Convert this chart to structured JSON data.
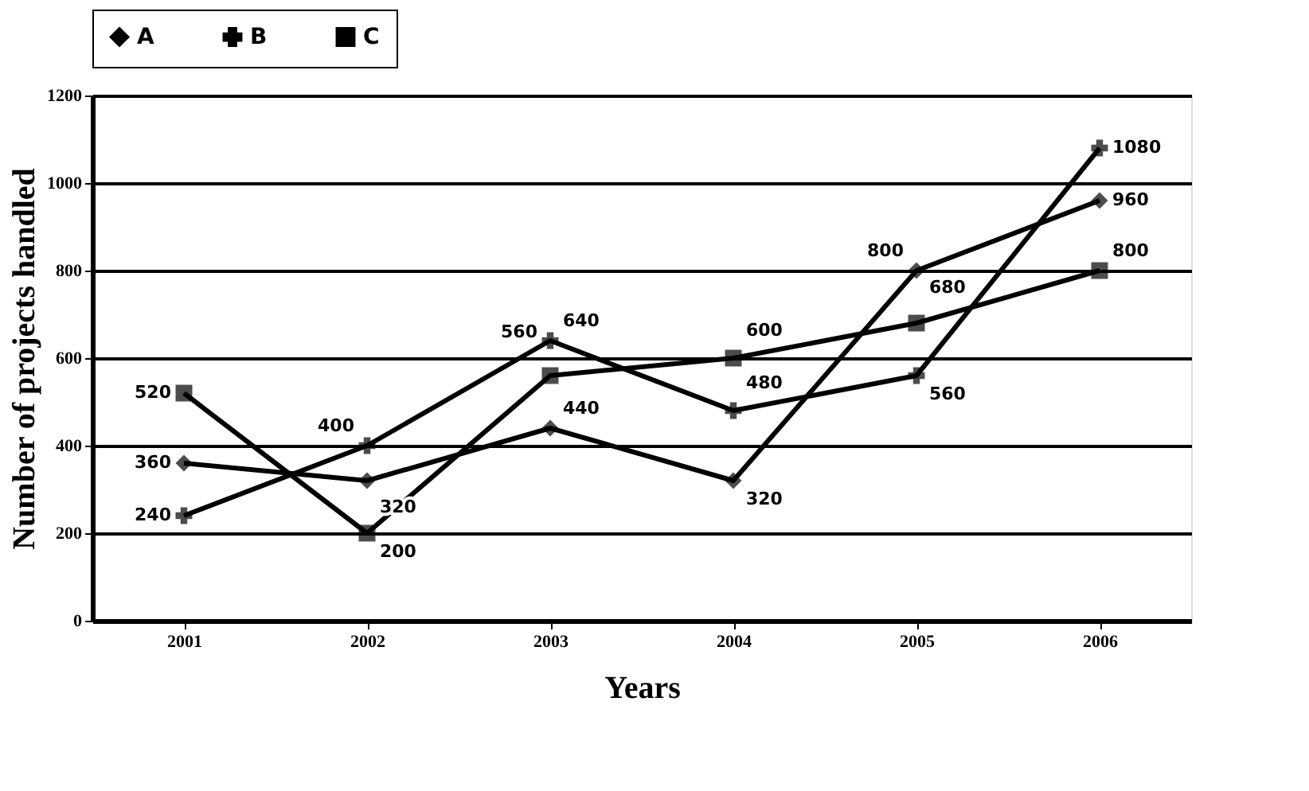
{
  "chart_data": {
    "type": "line",
    "xlabel": "Years",
    "ylabel": "Number of projects handled",
    "categories": [
      "2001",
      "2002",
      "2003",
      "2004",
      "2005",
      "2006"
    ],
    "series": [
      {
        "name": "A",
        "color": "#000000",
        "marker": "diamond",
        "values": [
          360,
          320,
          440,
          320,
          800,
          960
        ]
      },
      {
        "name": "B",
        "color": "#000000",
        "marker": "cross",
        "values": [
          240,
          400,
          640,
          480,
          560,
          1080
        ]
      },
      {
        "name": "C",
        "color": "#000000",
        "marker": "square",
        "values": [
          520,
          200,
          560,
          600,
          680,
          800
        ]
      }
    ],
    "ylim": [
      0,
      1200
    ],
    "yticks": [
      0,
      200,
      400,
      600,
      800,
      1000,
      1200
    ],
    "grid": "y",
    "legend": "top",
    "data_labels": true,
    "line_style": "solid"
  }
}
